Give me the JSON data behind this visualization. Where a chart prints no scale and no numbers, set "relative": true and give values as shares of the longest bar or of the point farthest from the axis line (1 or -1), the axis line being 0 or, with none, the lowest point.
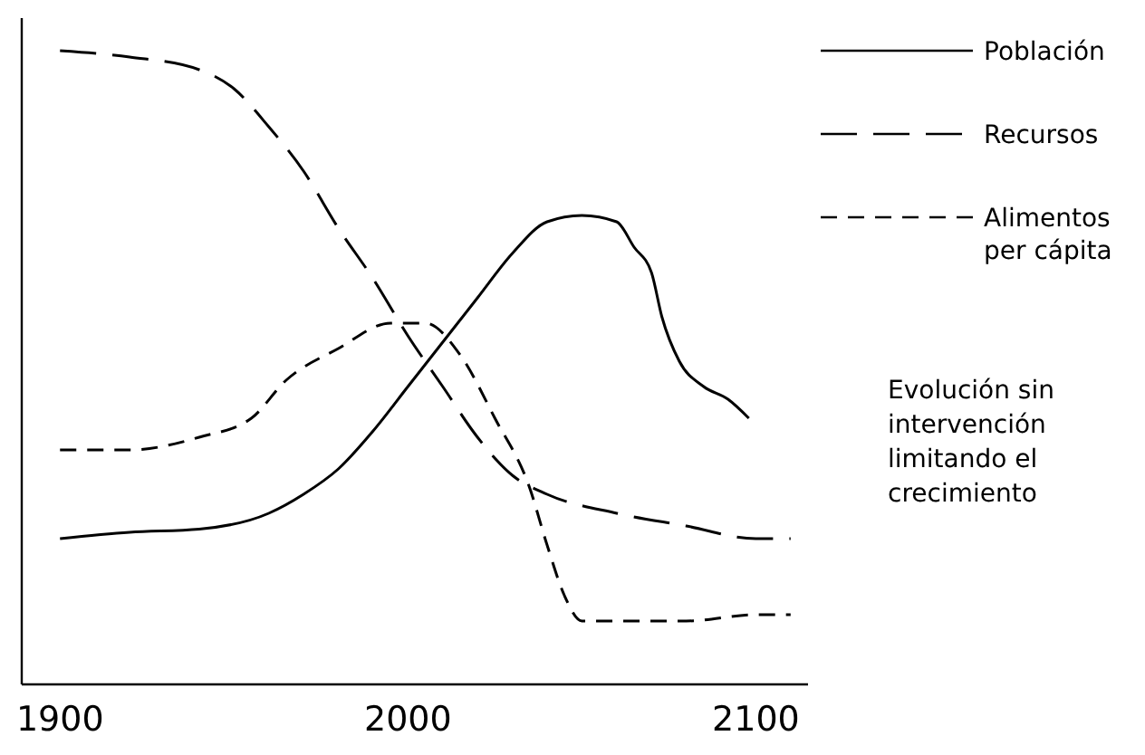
{
  "chart_data": {
    "type": "line",
    "relative": true,
    "legend": "top right",
    "grid": false,
    "marker": "none",
    "xlim": [
      1889,
      2115
    ],
    "xticks": [
      1900,
      2000,
      2100
    ],
    "annotations": [
      "Evolución sin intervención limitando el crecimiento"
    ],
    "series": [
      {
        "name": "Población",
        "color": "#000000",
        "line_style": "solid",
        "x": [
          1900,
          1920,
          1940,
          1960,
          1970,
          1980,
          1990,
          2000,
          2010,
          2020,
          2030,
          2040,
          2050,
          2060,
          2065,
          2070,
          2073,
          2078,
          2085,
          2092,
          2098
        ],
        "values": [
          0.23,
          0.24,
          0.245,
          0.27,
          0.3,
          0.34,
          0.4,
          0.47,
          0.54,
          0.61,
          0.68,
          0.73,
          0.74,
          0.73,
          0.69,
          0.65,
          0.58,
          0.51,
          0.47,
          0.45,
          0.42
        ]
      },
      {
        "name": "Recursos",
        "color": "#000000",
        "line_style": "dashed",
        "x": [
          1900,
          1920,
          1940,
          1950,
          1960,
          1970,
          1980,
          1990,
          2000,
          2010,
          2020,
          2030,
          2040,
          2060,
          2080,
          2100,
          2110
        ],
        "values": [
          1,
          0.99,
          0.97,
          0.94,
          0.88,
          0.81,
          0.72,
          0.64,
          0.55,
          0.47,
          0.39,
          0.33,
          0.3,
          0.27,
          0.25,
          0.23,
          0.23
        ]
      },
      {
        "name": "Alimentos per cápita",
        "color": "#000000",
        "line_style": "dashed",
        "x": [
          1900,
          1920,
          1940,
          1955,
          1965,
          1980,
          1995,
          2005,
          2015,
          2025,
          2035,
          2040,
          2045,
          2050,
          2060,
          2080,
          2100,
          2110
        ],
        "values": [
          0.37,
          0.37,
          0.39,
          0.42,
          0.48,
          0.53,
          0.57,
          0.57,
          0.52,
          0.42,
          0.31,
          0.22,
          0.14,
          0.1,
          0.1,
          0.1,
          0.11,
          0.11
        ]
      }
    ]
  }
}
